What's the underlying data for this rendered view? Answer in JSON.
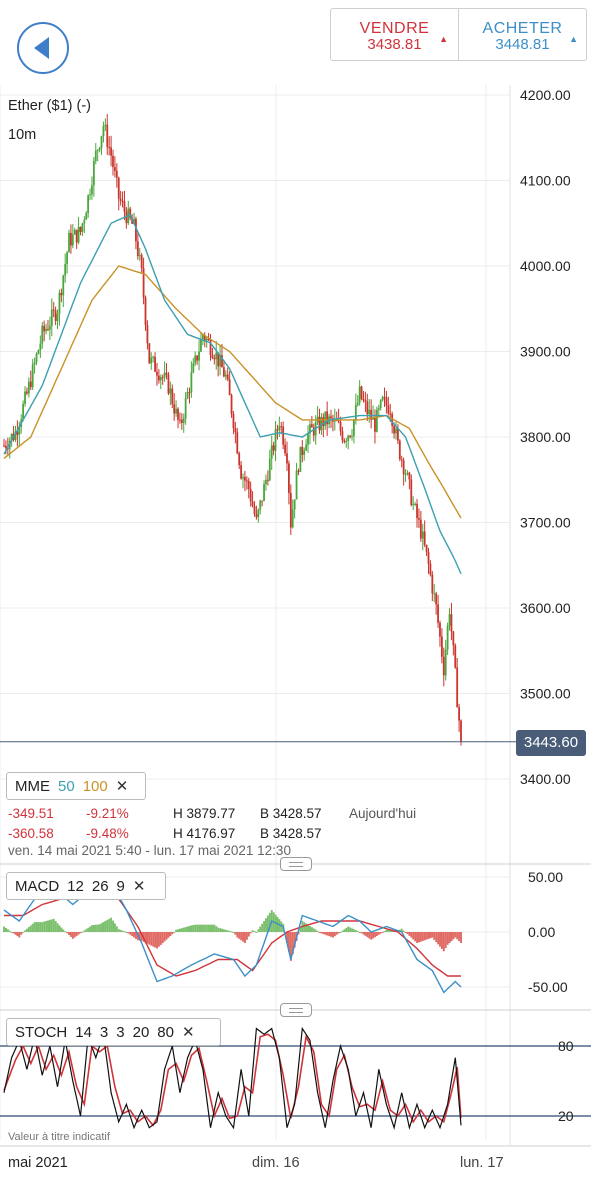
{
  "header": {
    "sell_label": "VENDRE",
    "sell_price": "3438.81",
    "buy_label": "ACHETER",
    "buy_price": "3448.81"
  },
  "instrument": {
    "name": "Ether ($1) (-)",
    "timeframe": "10m"
  },
  "colors": {
    "up": "#4aa53c",
    "down": "#c9342c",
    "ema50": "#3d9fb0",
    "ema100": "#c99226",
    "current": "#4a5d78",
    "stoch_k": "#111111",
    "stoch_d": "#d0343b"
  },
  "current_price": "3443.60",
  "mme": {
    "label": "MME",
    "p1": "50",
    "p2": "100",
    "close": "✕",
    "row1": {
      "change": "-349.51",
      "pct": "-9.21%",
      "high": "H 3879.77",
      "low": "B 3428.57",
      "period": "Aujourd'hui"
    },
    "row2": {
      "change": "-360.58",
      "pct": "-9.48%",
      "high": "H 4176.97",
      "low": "B 3428.57"
    },
    "range": "ven. 14 mai 2021 5:40 - lun. 17 mai 2021 12:30"
  },
  "macd": {
    "label": "MACD",
    "p1": "12",
    "p2": "26",
    "p3": "9",
    "close": "✕",
    "ticks": [
      "50.00",
      "0.00",
      "-50.00"
    ]
  },
  "stoch": {
    "label": "STOCH",
    "p1": "14",
    "p2": "3",
    "p3": "3",
    "p4": "20",
    "p5": "80",
    "close": "✕",
    "ticks": [
      "80",
      "20"
    ]
  },
  "disclaimer": "Valeur à titre indicatif",
  "x_axis": {
    "labels": [
      "mai 2021",
      "dim. 16",
      "lun. 17"
    ]
  },
  "chart_data": [
    {
      "type": "candlestick",
      "ylim": [
        3380,
        4230
      ],
      "y_ticks": [
        "4200.00",
        "4100.00",
        "4000.00",
        "3900.00",
        "3800.00",
        "3700.00",
        "3600.00",
        "3500.00",
        "3400.00"
      ],
      "last": 3443.6,
      "anchors": [
        [
          0,
          3790
        ],
        [
          6,
          3805
        ],
        [
          12,
          3850
        ],
        [
          20,
          3920
        ],
        [
          28,
          3950
        ],
        [
          34,
          4030
        ],
        [
          40,
          4040
        ],
        [
          44,
          4080
        ],
        [
          48,
          4130
        ],
        [
          52,
          4165
        ],
        [
          56,
          4130
        ],
        [
          60,
          4080
        ],
        [
          64,
          4060
        ],
        [
          68,
          4045
        ],
        [
          72,
          3990
        ],
        [
          76,
          3890
        ],
        [
          80,
          3880
        ],
        [
          86,
          3860
        ],
        [
          92,
          3810
        ],
        [
          98,
          3870
        ],
        [
          104,
          3920
        ],
        [
          110,
          3900
        ],
        [
          116,
          3870
        ],
        [
          120,
          3820
        ],
        [
          124,
          3760
        ],
        [
          128,
          3740
        ],
        [
          132,
          3700
        ],
        [
          136,
          3740
        ],
        [
          140,
          3780
        ],
        [
          144,
          3820
        ],
        [
          148,
          3780
        ],
        [
          150,
          3700
        ],
        [
          154,
          3770
        ],
        [
          158,
          3800
        ],
        [
          162,
          3810
        ],
        [
          168,
          3820
        ],
        [
          174,
          3815
        ],
        [
          178,
          3800
        ],
        [
          182,
          3810
        ],
        [
          186,
          3850
        ],
        [
          190,
          3830
        ],
        [
          194,
          3815
        ],
        [
          198,
          3840
        ],
        [
          202,
          3835
        ],
        [
          206,
          3790
        ],
        [
          210,
          3760
        ],
        [
          214,
          3720
        ],
        [
          218,
          3690
        ],
        [
          222,
          3650
        ],
        [
          226,
          3600
        ],
        [
          230,
          3530
        ],
        [
          233,
          3600
        ],
        [
          236,
          3520
        ],
        [
          239,
          3443.6
        ]
      ],
      "ema50_pts": [
        [
          0,
          3780
        ],
        [
          20,
          3860
        ],
        [
          40,
          3980
        ],
        [
          56,
          4050
        ],
        [
          66,
          4060
        ],
        [
          74,
          4020
        ],
        [
          84,
          3960
        ],
        [
          96,
          3920
        ],
        [
          108,
          3910
        ],
        [
          118,
          3880
        ],
        [
          126,
          3840
        ],
        [
          134,
          3800
        ],
        [
          144,
          3805
        ],
        [
          156,
          3800
        ],
        [
          170,
          3820
        ],
        [
          186,
          3825
        ],
        [
          200,
          3825
        ],
        [
          210,
          3800
        ],
        [
          220,
          3740
        ],
        [
          228,
          3690
        ],
        [
          235,
          3660
        ],
        [
          239,
          3640
        ]
      ],
      "ema100_pts": [
        [
          0,
          3775
        ],
        [
          14,
          3800
        ],
        [
          30,
          3880
        ],
        [
          46,
          3960
        ],
        [
          60,
          4000
        ],
        [
          74,
          3990
        ],
        [
          90,
          3950
        ],
        [
          104,
          3920
        ],
        [
          118,
          3900
        ],
        [
          130,
          3870
        ],
        [
          142,
          3840
        ],
        [
          156,
          3820
        ],
        [
          170,
          3820
        ],
        [
          186,
          3820
        ],
        [
          200,
          3825
        ],
        [
          212,
          3810
        ],
        [
          222,
          3770
        ],
        [
          230,
          3740
        ],
        [
          239,
          3705
        ]
      ]
    },
    {
      "type": "macd",
      "ylim": [
        -60,
        60
      ],
      "ticks": [
        50,
        0,
        -50
      ],
      "macd_pts": [
        [
          0,
          20
        ],
        [
          8,
          10
        ],
        [
          16,
          30
        ],
        [
          26,
          40
        ],
        [
          36,
          25
        ],
        [
          46,
          40
        ],
        [
          56,
          45
        ],
        [
          64,
          20
        ],
        [
          72,
          -10
        ],
        [
          80,
          -45
        ],
        [
          88,
          -40
        ],
        [
          98,
          -30
        ],
        [
          110,
          -20
        ],
        [
          120,
          -25
        ],
        [
          126,
          -40
        ],
        [
          132,
          -30
        ],
        [
          140,
          10
        ],
        [
          146,
          5
        ],
        [
          150,
          -25
        ],
        [
          156,
          15
        ],
        [
          164,
          10
        ],
        [
          172,
          5
        ],
        [
          180,
          15
        ],
        [
          186,
          10
        ],
        [
          192,
          0
        ],
        [
          200,
          5
        ],
        [
          208,
          0
        ],
        [
          216,
          -25
        ],
        [
          224,
          -35
        ],
        [
          230,
          -55
        ],
        [
          236,
          -45
        ],
        [
          239,
          -50
        ]
      ],
      "signal_pts": [
        [
          0,
          15
        ],
        [
          10,
          15
        ],
        [
          20,
          25
        ],
        [
          30,
          30
        ],
        [
          40,
          32
        ],
        [
          50,
          35
        ],
        [
          60,
          30
        ],
        [
          70,
          5
        ],
        [
          80,
          -30
        ],
        [
          90,
          -40
        ],
        [
          100,
          -35
        ],
        [
          112,
          -25
        ],
        [
          122,
          -25
        ],
        [
          130,
          -35
        ],
        [
          140,
          -10
        ],
        [
          148,
          0
        ],
        [
          156,
          5
        ],
        [
          166,
          10
        ],
        [
          176,
          10
        ],
        [
          186,
          10
        ],
        [
          196,
          5
        ],
        [
          206,
          0
        ],
        [
          216,
          -15
        ],
        [
          224,
          -30
        ],
        [
          232,
          -40
        ],
        [
          239,
          -40
        ]
      ]
    },
    {
      "type": "stochastic",
      "ylim": [
        0,
        100
      ],
      "ticks": [
        80,
        20
      ],
      "k_pts": [
        [
          0,
          40
        ],
        [
          4,
          70
        ],
        [
          8,
          85
        ],
        [
          12,
          60
        ],
        [
          16,
          88
        ],
        [
          20,
          55
        ],
        [
          24,
          80
        ],
        [
          28,
          45
        ],
        [
          32,
          85
        ],
        [
          36,
          50
        ],
        [
          40,
          20
        ],
        [
          44,
          88
        ],
        [
          48,
          70
        ],
        [
          52,
          90
        ],
        [
          56,
          40
        ],
        [
          60,
          15
        ],
        [
          64,
          30
        ],
        [
          68,
          10
        ],
        [
          72,
          25
        ],
        [
          76,
          10
        ],
        [
          80,
          15
        ],
        [
          84,
          60
        ],
        [
          88,
          80
        ],
        [
          92,
          40
        ],
        [
          96,
          70
        ],
        [
          100,
          85
        ],
        [
          104,
          60
        ],
        [
          108,
          10
        ],
        [
          112,
          40
        ],
        [
          116,
          20
        ],
        [
          120,
          10
        ],
        [
          124,
          60
        ],
        [
          128,
          20
        ],
        [
          132,
          95
        ],
        [
          136,
          90
        ],
        [
          140,
          95
        ],
        [
          144,
          70
        ],
        [
          148,
          10
        ],
        [
          152,
          30
        ],
        [
          156,
          95
        ],
        [
          160,
          85
        ],
        [
          164,
          40
        ],
        [
          168,
          10
        ],
        [
          172,
          50
        ],
        [
          176,
          80
        ],
        [
          180,
          60
        ],
        [
          184,
          20
        ],
        [
          188,
          40
        ],
        [
          192,
          10
        ],
        [
          196,
          60
        ],
        [
          200,
          30
        ],
        [
          204,
          10
        ],
        [
          208,
          40
        ],
        [
          212,
          10
        ],
        [
          216,
          30
        ],
        [
          220,
          10
        ],
        [
          224,
          25
        ],
        [
          228,
          10
        ],
        [
          232,
          30
        ],
        [
          236,
          70
        ],
        [
          239,
          12
        ]
      ],
      "d_pts": [
        [
          0,
          42
        ],
        [
          6,
          68
        ],
        [
          10,
          80
        ],
        [
          14,
          65
        ],
        [
          18,
          80
        ],
        [
          22,
          60
        ],
        [
          26,
          72
        ],
        [
          30,
          55
        ],
        [
          34,
          75
        ],
        [
          38,
          45
        ],
        [
          42,
          30
        ],
        [
          46,
          80
        ],
        [
          50,
          75
        ],
        [
          54,
          80
        ],
        [
          58,
          45
        ],
        [
          62,
          22
        ],
        [
          66,
          25
        ],
        [
          70,
          15
        ],
        [
          74,
          20
        ],
        [
          78,
          12
        ],
        [
          82,
          25
        ],
        [
          86,
          60
        ],
        [
          90,
          65
        ],
        [
          94,
          50
        ],
        [
          98,
          72
        ],
        [
          102,
          78
        ],
        [
          106,
          50
        ],
        [
          110,
          20
        ],
        [
          114,
          35
        ],
        [
          118,
          18
        ],
        [
          122,
          20
        ],
        [
          126,
          45
        ],
        [
          130,
          40
        ],
        [
          134,
          88
        ],
        [
          138,
          90
        ],
        [
          142,
          85
        ],
        [
          146,
          55
        ],
        [
          150,
          18
        ],
        [
          154,
          45
        ],
        [
          158,
          88
        ],
        [
          162,
          75
        ],
        [
          166,
          30
        ],
        [
          170,
          20
        ],
        [
          174,
          60
        ],
        [
          178,
          72
        ],
        [
          182,
          45
        ],
        [
          186,
          28
        ],
        [
          190,
          30
        ],
        [
          194,
          25
        ],
        [
          198,
          50
        ],
        [
          202,
          25
        ],
        [
          206,
          20
        ],
        [
          210,
          30
        ],
        [
          214,
          15
        ],
        [
          218,
          25
        ],
        [
          222,
          15
        ],
        [
          226,
          20
        ],
        [
          230,
          15
        ],
        [
          234,
          40
        ],
        [
          237,
          62
        ],
        [
          239,
          18
        ]
      ]
    }
  ]
}
